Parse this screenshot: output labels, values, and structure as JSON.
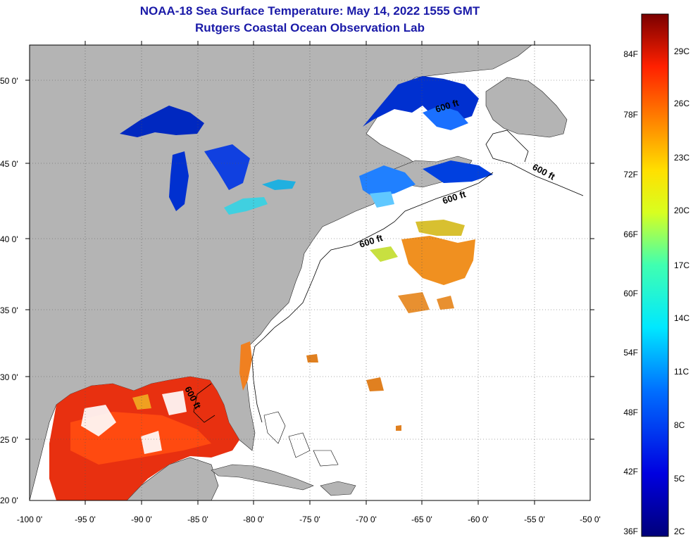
{
  "header": {
    "title": "NOAA-18 Sea Surface Temperature:  May 14, 2022 1555 GMT",
    "subtitle": "Rutgers Coastal Ocean Observation Lab"
  },
  "map": {
    "lat_labels": [
      "50 0'",
      "45 0'",
      "40 0'",
      "35 0'",
      "30 0'",
      "25 0'",
      "20 0'"
    ],
    "lon_labels": [
      "-100 0'",
      "-95 0'",
      "-90 0'",
      "-85 0'",
      "-80 0'",
      "-75 0'",
      "-70 0'",
      "-65 0'",
      "-60 0'",
      "-55 0'",
      "-50 0'"
    ],
    "contour_label": "600 ft",
    "land_color": "#b4b4b4"
  },
  "colorbar": {
    "f_labels": [
      "84F",
      "78F",
      "72F",
      "66F",
      "60F",
      "54F",
      "48F",
      "42F",
      "36F"
    ],
    "c_labels": [
      "29C",
      "26C",
      "23C",
      "20C",
      "17C",
      "14C",
      "11C",
      "8C",
      "5C",
      "2C"
    ]
  }
}
